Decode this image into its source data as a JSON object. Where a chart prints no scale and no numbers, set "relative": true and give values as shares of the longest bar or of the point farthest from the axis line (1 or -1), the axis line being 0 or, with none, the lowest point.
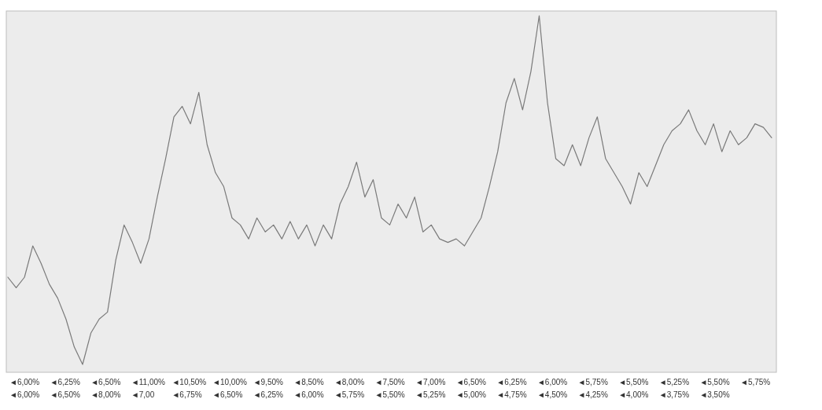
{
  "chart_data": {
    "type": "line",
    "relative": true,
    "categories": [
      null,
      null,
      null,
      null,
      null,
      null,
      null,
      null,
      null,
      null,
      null,
      null,
      null,
      null,
      null,
      null,
      null,
      null,
      null,
      null,
      null,
      null,
      null,
      null,
      null,
      null,
      null,
      null,
      null,
      null,
      null,
      null,
      null,
      null,
      null,
      null,
      null,
      null,
      null,
      null,
      null,
      null,
      null,
      null,
      null,
      null,
      null,
      null,
      null,
      null,
      null,
      null,
      null,
      null,
      null,
      null,
      null,
      null,
      null,
      null,
      null,
      null,
      null,
      null,
      null,
      null,
      null,
      null,
      null,
      null,
      null,
      null,
      null,
      null,
      null,
      null,
      null,
      null,
      null,
      null,
      null,
      null,
      null,
      null,
      null,
      null,
      null,
      null,
      null,
      null,
      null,
      null,
      null
    ],
    "series": [
      {
        "color": "#7a7a7a",
        "values": [
          0.25,
          0.22,
          0.25,
          0.34,
          0.29,
          0.23,
          0.19,
          0.13,
          0.05,
          0,
          0.09,
          0.13,
          0.15,
          0.3,
          0.4,
          0.35,
          0.29,
          0.36,
          0.48,
          0.59,
          0.71,
          0.74,
          0.69,
          0.78,
          0.63,
          0.55,
          0.51,
          0.42,
          0.4,
          0.36,
          0.42,
          0.38,
          0.4,
          0.36,
          0.41,
          0.36,
          0.4,
          0.34,
          0.4,
          0.36,
          0.46,
          0.51,
          0.58,
          0.48,
          0.53,
          0.42,
          0.4,
          0.46,
          0.42,
          0.48,
          0.38,
          0.4,
          0.36,
          0.35,
          0.36,
          0.34,
          0.38,
          0.42,
          0.51,
          0.61,
          0.75,
          0.82,
          0.73,
          0.84,
          1,
          0.75,
          0.59,
          0.57,
          0.63,
          0.57,
          0.65,
          0.71,
          0.59,
          0.55,
          0.51,
          0.46,
          0.55,
          0.51,
          0.57,
          0.63,
          0.67,
          0.69,
          0.73,
          0.67,
          0.63,
          0.69,
          0.61,
          0.67,
          0.63,
          0.65,
          0.69,
          0.68,
          0.65
        ]
      }
    ],
    "annotations": [
      "◄6,00%",
      "◄6,25%",
      "◄6,50%",
      "◄11,00%",
      "◄10,50%",
      "◄10,00%",
      "◄9,50%",
      "◄8,50%",
      "◄8,00%",
      "◄7,50%",
      "◄7,00%",
      "◄6,50%",
      "◄6,25%",
      "◄6,00%",
      "◄5,75%",
      "◄5,50%",
      "◄5,25%",
      "◄5,50%",
      "◄5,75%",
      "◄6,00%",
      "◄6,50%",
      "◄8,00%",
      "◄7,00",
      "◄6,75%",
      "◄6,50%",
      "◄6,25%",
      "◄6,00%",
      "◄5,75%",
      "◄5,50%",
      "◄5,25%",
      "◄5,00%",
      "◄4,75%",
      "◄4,50%",
      "◄4,25%",
      "◄4,00%",
      "◄3,75%",
      "◄3,50%"
    ]
  }
}
